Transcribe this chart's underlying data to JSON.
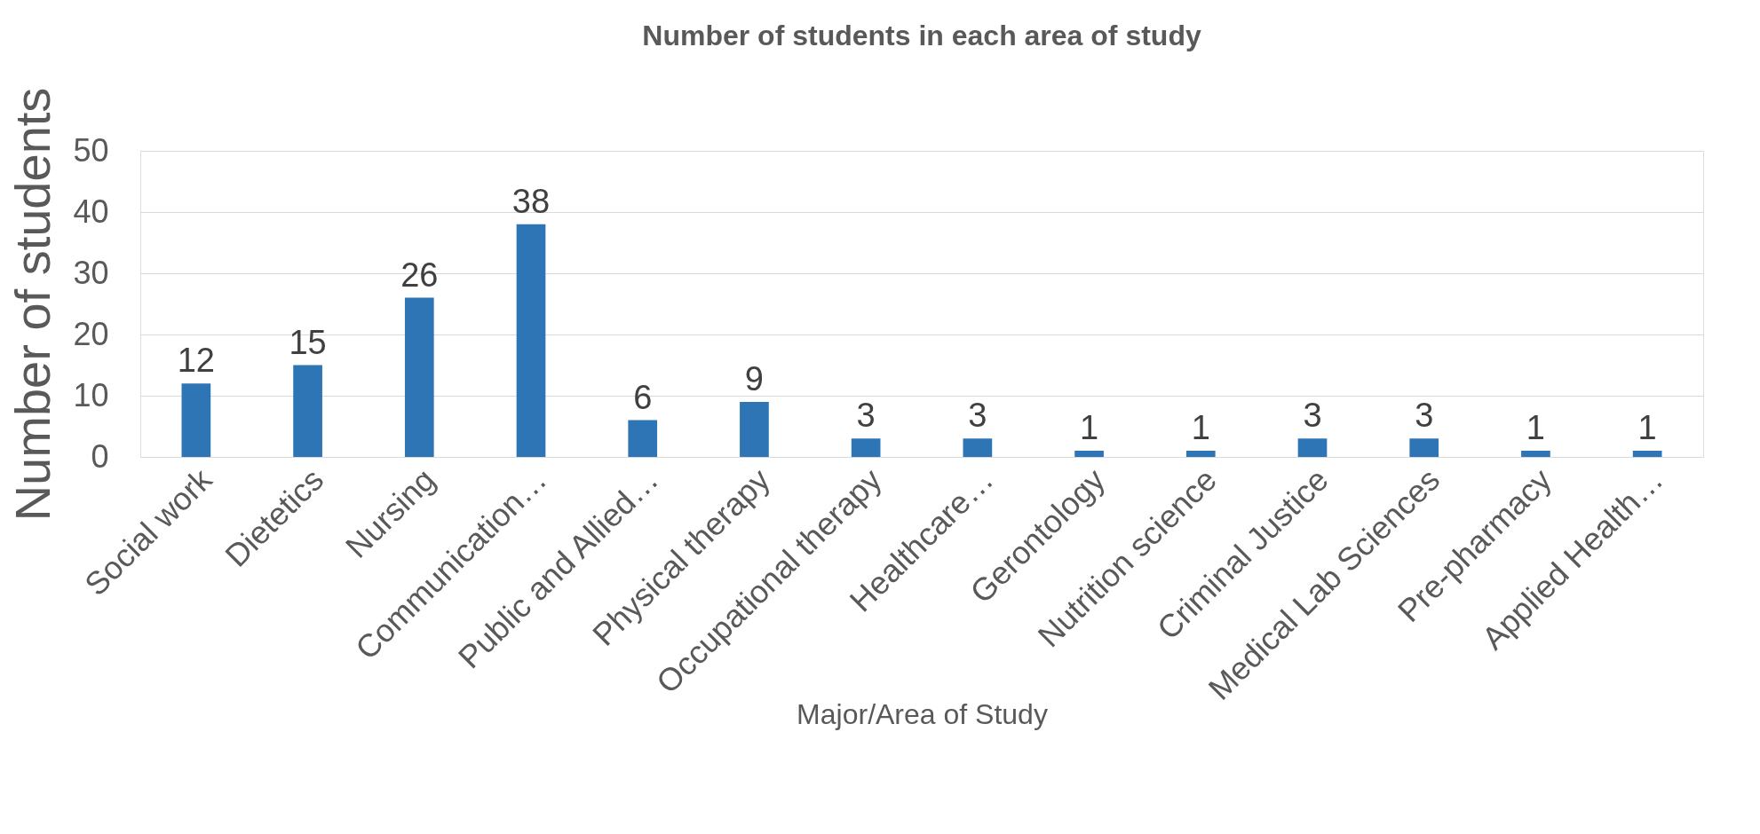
{
  "chart_data": {
    "type": "bar",
    "title": "Number of students in each area of study",
    "xlabel": "Major/Area of Study",
    "ylabel": "Number of students",
    "categories": [
      "Social work",
      "Dietetics",
      "Nursing",
      "Communication…",
      "Public and Allied…",
      "Physical therapy",
      "Occupational therapy",
      "Healthcare…",
      "Gerontology",
      "Nutrition science",
      "Criminal Justice",
      "Medical Lab Sciences",
      "Pre-pharmacy",
      "Applied Health…"
    ],
    "values": [
      12,
      15,
      26,
      38,
      6,
      9,
      3,
      3,
      1,
      1,
      3,
      3,
      1,
      1
    ],
    "color": "#2e75b6",
    "ylim": [
      0,
      50
    ],
    "yticks": [
      0,
      10,
      20,
      30,
      40,
      50
    ],
    "grid": "y",
    "data_labels": true
  }
}
